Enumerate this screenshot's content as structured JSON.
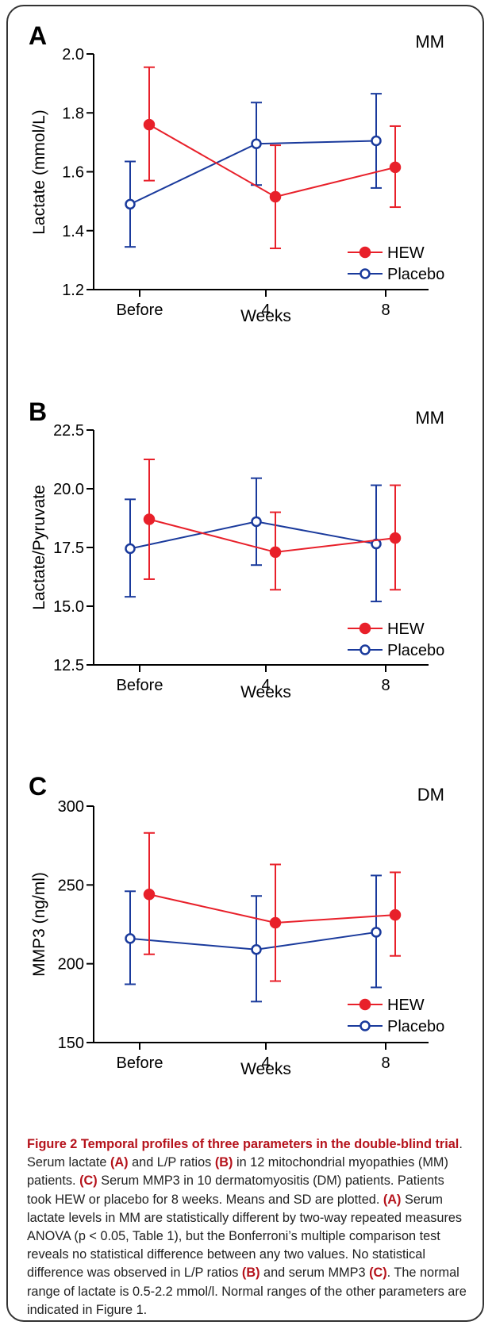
{
  "colors": {
    "hew": "#e8202a",
    "placebo": "#1a3a9c",
    "caption_accent": "#b5121b"
  },
  "chart_data": [
    {
      "type": "line",
      "panel": "A",
      "group": "MM",
      "ylabel": "Lactate (mmol/L)",
      "xlabel": "Weeks",
      "categories": [
        "Before",
        "4",
        "8"
      ],
      "ylim": [
        1.2,
        2.0
      ],
      "yticks": [
        "1.2",
        "1.4",
        "1.6",
        "1.8",
        "2.0"
      ],
      "series": [
        {
          "name": "HEW",
          "values": [
            1.76,
            1.515,
            1.615
          ],
          "err_low": [
            1.57,
            1.34,
            1.48
          ],
          "err_high": [
            1.955,
            1.69,
            1.755
          ]
        },
        {
          "name": "Placebo",
          "values": [
            1.49,
            1.695,
            1.705
          ],
          "err_low": [
            1.345,
            1.555,
            1.545
          ],
          "err_high": [
            1.635,
            1.835,
            1.865
          ]
        }
      ]
    },
    {
      "type": "line",
      "panel": "B",
      "group": "MM",
      "ylabel": "Lactate/Pyruvate",
      "xlabel": "Weeks",
      "categories": [
        "Before",
        "4",
        "8"
      ],
      "ylim": [
        12.5,
        22.5
      ],
      "yticks": [
        "12.5",
        "15.0",
        "17.5",
        "20.0",
        "22.5"
      ],
      "series": [
        {
          "name": "HEW",
          "values": [
            18.7,
            17.3,
            17.9
          ],
          "err_low": [
            16.15,
            15.7,
            15.7
          ],
          "err_high": [
            21.25,
            19.0,
            20.15
          ]
        },
        {
          "name": "Placebo",
          "values": [
            17.45,
            18.6,
            17.65
          ],
          "err_low": [
            15.4,
            16.75,
            15.2
          ],
          "err_high": [
            19.55,
            20.45,
            20.15
          ]
        }
      ]
    },
    {
      "type": "line",
      "panel": "C",
      "group": "DM",
      "ylabel": "MMP3 (ng/ml)",
      "xlabel": "Weeks",
      "categories": [
        "Before",
        "4",
        "8"
      ],
      "ylim": [
        150,
        300
      ],
      "yticks": [
        "150",
        "200",
        "250",
        "300"
      ],
      "series": [
        {
          "name": "HEW",
          "values": [
            244,
            226,
            231
          ],
          "err_low": [
            206,
            189,
            205
          ],
          "err_high": [
            283,
            263,
            258
          ]
        },
        {
          "name": "Placebo",
          "values": [
            216,
            209,
            220
          ],
          "err_low": [
            187,
            176,
            185
          ],
          "err_high": [
            246,
            243,
            256
          ]
        }
      ]
    }
  ],
  "caption": {
    "title": "Figure 2 Temporal profiles of three parameters in the double-blind trial",
    "segments": [
      {
        "t": ". Serum lactate ",
        "b": false
      },
      {
        "t": "(A)",
        "b": true
      },
      {
        "t": " and L/P ratios ",
        "b": false
      },
      {
        "t": "(B)",
        "b": true
      },
      {
        "t": " in 12 mitochondrial myopathies (MM) patients. ",
        "b": false
      },
      {
        "t": "(C)",
        "b": true
      },
      {
        "t": " Serum MMP3 in 10 dermatomyositis (DM) patients. Patients took HEW or placebo for 8 weeks. Means and SD are plotted. ",
        "b": false
      },
      {
        "t": "(A)",
        "b": true
      },
      {
        "t": " Serum lactate levels in MM are statistically different by two-way repeated measures ANOVA (p < 0.05, Table 1), but the Bonferroni’s multiple comparison test reveals no statistical difference between any two values. No statistical difference was observed in L/P ratios ",
        "b": false
      },
      {
        "t": "(B)",
        "b": true
      },
      {
        "t": " and serum MMP3 ",
        "b": false
      },
      {
        "t": "(C)",
        "b": true
      },
      {
        "t": ". The normal range of lactate is 0.5-2.2 mmol/l. Normal ranges of the other parameters are indicated in Figure 1.",
        "b": false
      }
    ]
  }
}
